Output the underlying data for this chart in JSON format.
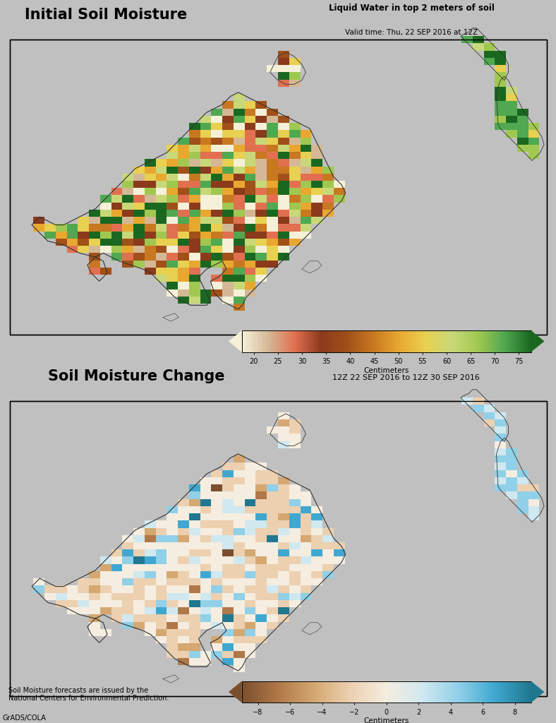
{
  "title1": "Initial Soil Moisture",
  "title2": "Soil Moisture Change",
  "subtitle1_line1": "Liquid Water in top 2 meters of soil",
  "subtitle1_line2": "Valid time: Thu, 22 SEP 2016 at 12Z",
  "subtitle2": "12Z 22 SEP 2016 to 12Z 30 SEP 2016",
  "colorbar1_ticks": [
    20,
    25,
    30,
    35,
    40,
    45,
    50,
    55,
    60,
    65,
    70,
    75
  ],
  "colorbar1_label": "Centimeters",
  "colorbar1_colors": [
    "#f5f0d8",
    "#d4b896",
    "#e07050",
    "#8b3a1c",
    "#a05018",
    "#c87820",
    "#e8a830",
    "#e8d050",
    "#c8d878",
    "#a0c850",
    "#50a850",
    "#1a6820"
  ],
  "colorbar2_ticks": [
    -8,
    -6,
    -4,
    -2,
    0,
    2,
    4,
    6,
    8
  ],
  "colorbar2_label": "Centimeters",
  "colorbar2_colors": [
    "#7b4f2e",
    "#b07848",
    "#d4a870",
    "#ecd0b0",
    "#f5ede0",
    "#d0e8f0",
    "#90d0e8",
    "#40a8d0",
    "#207890"
  ],
  "panel_bg": "#c0c0c0",
  "map_bg": "#b8b8b8",
  "footnote": "Soil Moisture forecasts are issued by the\nNational Centers for Environmental Prediction.",
  "credit": "GrADS/COLA",
  "ocean_color": "#b8bfc8"
}
